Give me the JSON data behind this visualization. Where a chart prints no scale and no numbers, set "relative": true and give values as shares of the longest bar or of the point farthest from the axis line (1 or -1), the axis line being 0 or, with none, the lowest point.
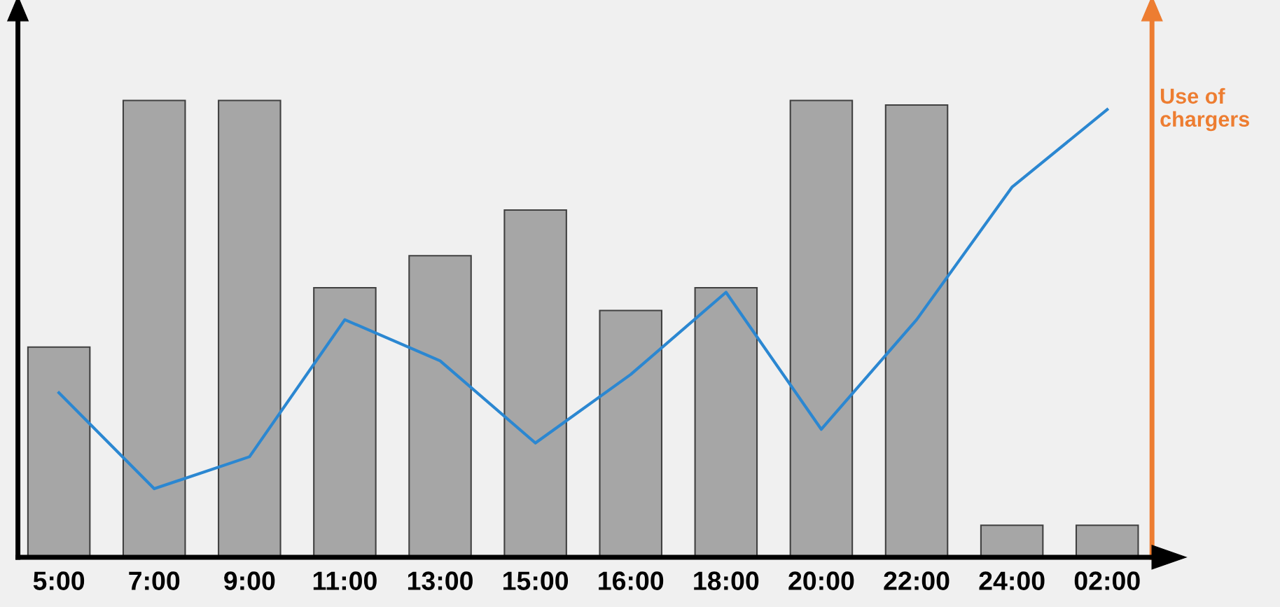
{
  "chart_data": {
    "type": "bar",
    "relative": true,
    "categories": [
      "5:00",
      "7:00",
      "9:00",
      "11:00",
      "13:00",
      "15:00",
      "16:00",
      "18:00",
      "20:00",
      "22:00",
      "24:00",
      "02:00"
    ],
    "series": [
      {
        "color": "#a6a6a6",
        "values": [
          0.46,
          1.0,
          1.0,
          0.59,
          0.66,
          0.76,
          0.54,
          0.59,
          1.0,
          0.99,
          0.07,
          0.07
        ]
      },
      {
        "type": "line",
        "name": "Use of chargers",
        "color": "#2b87d1",
        "values": [
          0.36,
          0.15,
          0.22,
          0.52,
          0.43,
          0.25,
          0.4,
          0.58,
          0.28,
          0.52,
          0.81,
          0.98
        ]
      }
    ]
  }
}
